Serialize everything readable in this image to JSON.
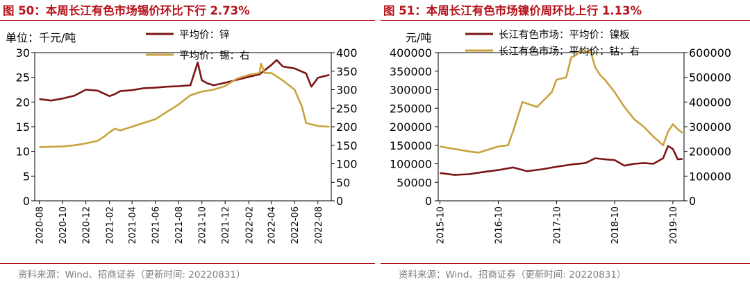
{
  "panels": [
    {
      "title": "图 50：本周长江有色市场锡价环比下行 2.73%",
      "source": "资料来源：Wind、招商证券（更新时间: 20220831）"
    },
    {
      "title": "图 51：本周长江有色市场镍价周环比上行 1.13%",
      "source": "资料来源：Wind、招商证券（更新时间: 20220831）"
    }
  ],
  "colors": {
    "accent": "#b5121b",
    "series_dark": "#7b1416",
    "series_gold": "#c9a23f",
    "source_text": "#7f7f7f"
  },
  "chart_data": [
    {
      "type": "line",
      "ylabel_left": "单位：千元/吨",
      "ylim_left": [
        0,
        30
      ],
      "yticks_left": [
        0,
        5,
        10,
        15,
        20,
        25,
        30
      ],
      "ylim_right": [
        0,
        400
      ],
      "yticks_right": [
        0,
        50,
        100,
        150,
        200,
        250,
        300,
        350,
        400
      ],
      "x_ticks": [
        "2020-08",
        "2020-10",
        "2020-12",
        "2021-02",
        "2021-04",
        "2021-06",
        "2021-08",
        "2021-10",
        "2021-12",
        "2022-02",
        "2022-04",
        "2022-06",
        "2022-08"
      ],
      "legend_position": "top",
      "series": [
        {
          "name": "平均价：锌",
          "axis": "left",
          "x": [
            "2020-08-01",
            "2020-09-01",
            "2020-10-01",
            "2020-11-01",
            "2020-12-01",
            "2021-01-01",
            "2021-02-01",
            "2021-02-15",
            "2021-03-01",
            "2021-04-01",
            "2021-05-01",
            "2021-06-01",
            "2021-07-01",
            "2021-08-01",
            "2021-09-01",
            "2021-09-20",
            "2021-10-01",
            "2021-10-15",
            "2021-11-01",
            "2021-12-01",
            "2022-01-01",
            "2022-02-01",
            "2022-03-01",
            "2022-04-01",
            "2022-04-15",
            "2022-05-01",
            "2022-06-01",
            "2022-07-01",
            "2022-07-15",
            "2022-08-01",
            "2022-08-31"
          ],
          "values": [
            20.6,
            20.3,
            20.7,
            21.3,
            22.5,
            22.3,
            21.2,
            21.6,
            22.2,
            22.4,
            22.8,
            22.9,
            23.1,
            23.2,
            23.4,
            28.0,
            24.4,
            23.8,
            23.4,
            23.9,
            24.5,
            25.1,
            25.6,
            27.5,
            28.5,
            27.2,
            26.8,
            25.8,
            23.1,
            24.9,
            25.5
          ]
        },
        {
          "name": "平均价：锡：右",
          "axis": "right",
          "x": [
            "2020-08-01",
            "2020-09-01",
            "2020-10-01",
            "2020-11-01",
            "2020-12-01",
            "2021-01-01",
            "2021-01-20",
            "2021-02-01",
            "2021-02-15",
            "2021-03-01",
            "2021-04-01",
            "2021-05-01",
            "2021-06-01",
            "2021-07-01",
            "2021-08-01",
            "2021-09-01",
            "2021-10-01",
            "2021-11-01",
            "2021-12-01",
            "2022-01-01",
            "2022-02-01",
            "2022-03-01",
            "2022-03-05",
            "2022-03-15",
            "2022-04-01",
            "2022-05-01",
            "2022-06-01",
            "2022-06-20",
            "2022-07-01",
            "2022-08-01",
            "2022-08-31"
          ],
          "values": [
            145,
            146,
            147,
            150,
            155,
            162,
            175,
            185,
            195,
            190,
            200,
            210,
            220,
            240,
            260,
            285,
            295,
            300,
            310,
            330,
            340,
            345,
            370,
            345,
            345,
            325,
            300,
            255,
            210,
            202,
            200
          ]
        }
      ]
    },
    {
      "type": "line",
      "ylabel_left": "元/吨",
      "ylim_left": [
        0,
        400000
      ],
      "yticks_left": [
        0,
        50000,
        100000,
        150000,
        200000,
        250000,
        300000,
        350000,
        400000
      ],
      "ylim_right": [
        0,
        600000
      ],
      "yticks_right": [
        0,
        100000,
        200000,
        300000,
        400000,
        500000,
        600000
      ],
      "x_ticks": [
        "2015-10",
        "2016-10",
        "2017-10",
        "2018-10",
        "2019-10"
      ],
      "legend_position": "top",
      "series": [
        {
          "name": "长江有色市场：平均价：镍板",
          "axis": "left",
          "x": [
            "2015-10-01",
            "2016-01-01",
            "2016-04-01",
            "2016-07-01",
            "2016-10-01",
            "2017-01-01",
            "2017-04-01",
            "2017-07-01",
            "2017-10-01",
            "2018-01-01",
            "2018-04-01",
            "2018-06-01",
            "2018-08-01",
            "2018-10-01",
            "2018-12-01",
            "2019-02-01",
            "2019-04-01",
            "2019-06-01",
            "2019-08-01",
            "2019-09-01",
            "2019-10-01",
            "2019-11-01",
            "2019-12-01"
          ],
          "values": [
            75000,
            70000,
            72000,
            78000,
            83000,
            90000,
            80000,
            85000,
            92000,
            98000,
            102000,
            115000,
            112000,
            110000,
            95000,
            100000,
            102000,
            100000,
            115000,
            148000,
            140000,
            112000,
            113000
          ]
        },
        {
          "name": "长江有色市场：平均价：钴：右",
          "axis": "right",
          "x": [
            "2015-10-01",
            "2016-01-01",
            "2016-04-01",
            "2016-06-01",
            "2016-10-01",
            "2016-12-01",
            "2017-01-01",
            "2017-03-01",
            "2017-06-01",
            "2017-09-01",
            "2017-10-01",
            "2017-12-01",
            "2018-01-01",
            "2018-02-01",
            "2018-03-01",
            "2018-04-01",
            "2018-05-01",
            "2018-06-01",
            "2018-07-01",
            "2018-08-01",
            "2018-10-01",
            "2018-12-01",
            "2019-02-01",
            "2019-04-01",
            "2019-06-01",
            "2019-08-01",
            "2019-09-01",
            "2019-10-01",
            "2019-11-01",
            "2019-12-01"
          ],
          "values": [
            220000,
            210000,
            200000,
            195000,
            220000,
            225000,
            280000,
            400000,
            380000,
            440000,
            490000,
            500000,
            580000,
            590000,
            610000,
            600000,
            610000,
            540000,
            510000,
            490000,
            440000,
            380000,
            330000,
            300000,
            260000,
            225000,
            280000,
            310000,
            290000,
            275000
          ]
        }
      ]
    }
  ]
}
